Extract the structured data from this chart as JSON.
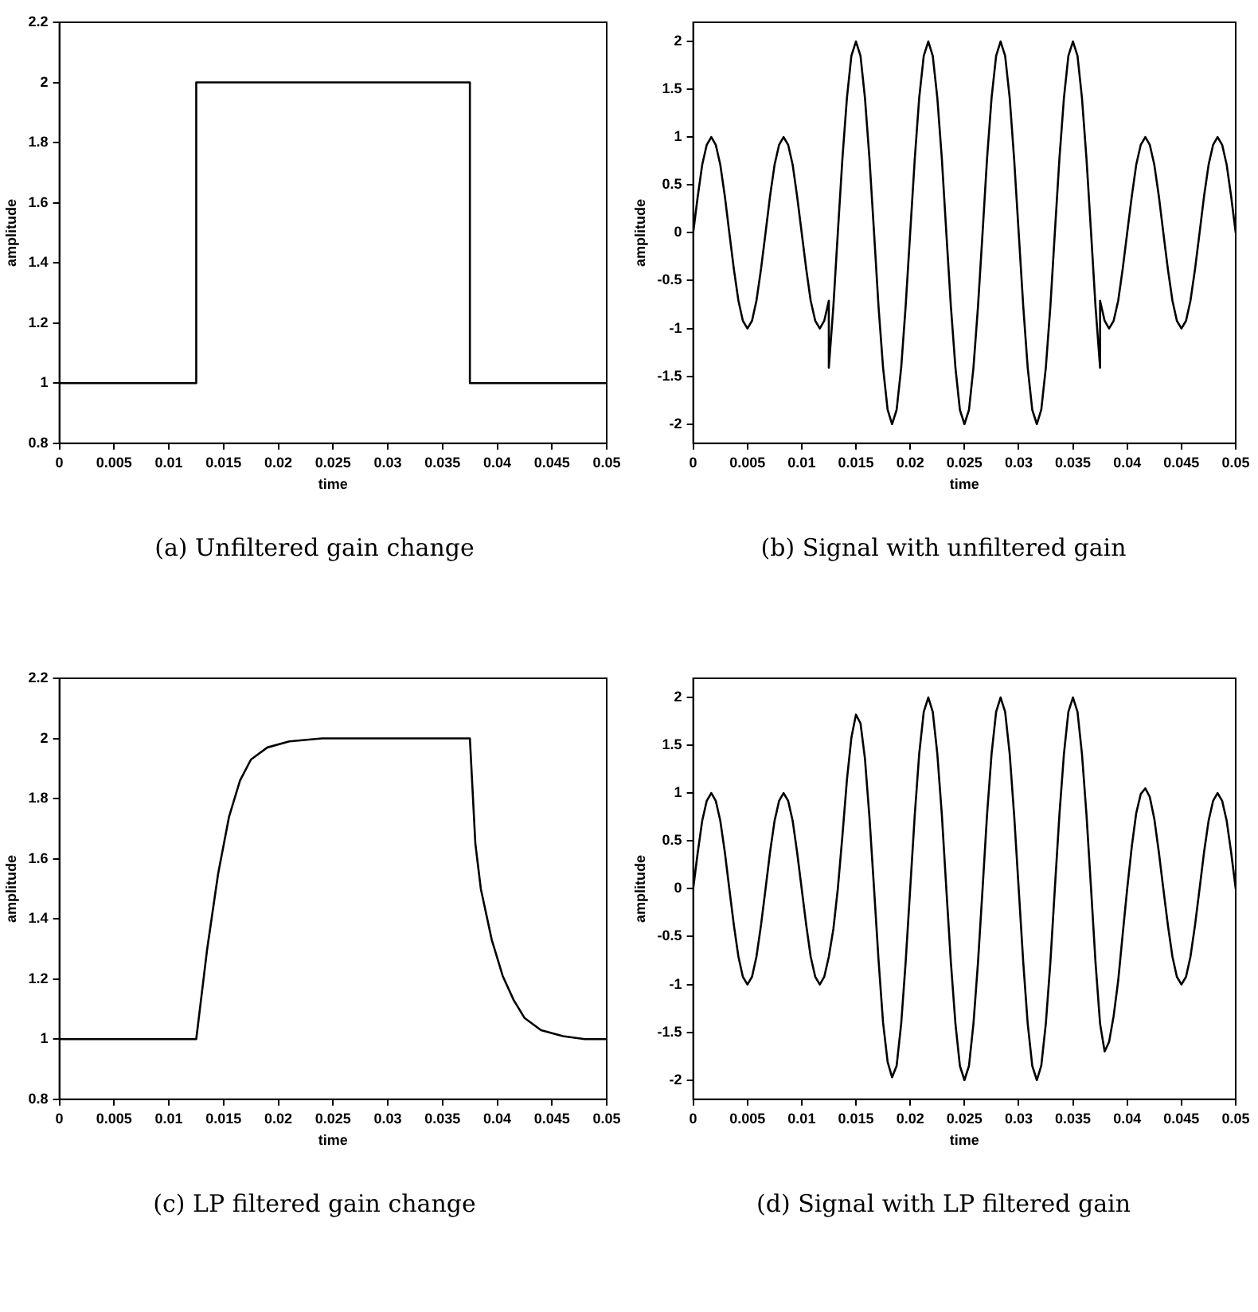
{
  "chart_data": [
    {
      "type": "line",
      "annotations": [
        "(a) Unfiltered gain change"
      ],
      "xlabel": "time",
      "ylabel": "amplitude",
      "xlim": [
        0,
        0.05
      ],
      "xticks": [
        0,
        0.005,
        0.01,
        0.015,
        0.02,
        0.025,
        0.03,
        0.035,
        0.04,
        0.045,
        0.05
      ],
      "ylim": [
        0.8,
        2.2
      ],
      "yticks": [
        0.8,
        1,
        1.2,
        1.4,
        1.6,
        1.8,
        2,
        2.2
      ],
      "grid": false,
      "legend": false,
      "marker": "none",
      "line_style": "solid",
      "series": [
        {
          "color": "#000000",
          "x": [
            0,
            0.0125,
            0.0125,
            0.0375,
            0.0375,
            0.05
          ],
          "values": [
            1,
            1,
            2,
            2,
            1,
            1
          ]
        }
      ]
    },
    {
      "type": "line",
      "annotations": [
        "(b) Signal with unfiltered gain"
      ],
      "xlabel": "time",
      "ylabel": "amplitude",
      "xlim": [
        0,
        0.05
      ],
      "xticks": [
        0,
        0.005,
        0.01,
        0.015,
        0.02,
        0.025,
        0.03,
        0.035,
        0.04,
        0.045,
        0.05
      ],
      "ylim": [
        -2.2,
        2.2
      ],
      "yticks": [
        -2,
        -1.5,
        -1,
        -0.5,
        0,
        0.5,
        1,
        1.5,
        2
      ],
      "grid": false,
      "legend": false,
      "marker": "none",
      "line_style": "solid",
      "series": [
        {
          "color": "#000000",
          "x": [
            0,
            0.00042,
            0.00083,
            0.00125,
            0.00167,
            0.00208,
            0.0025,
            0.00292,
            0.00333,
            0.00375,
            0.00417,
            0.00458,
            0.005,
            0.00542,
            0.00583,
            0.00625,
            0.00667,
            0.00708,
            0.0075,
            0.00792,
            0.00833,
            0.00875,
            0.00917,
            0.00958,
            0.01,
            0.01042,
            0.01083,
            0.01125,
            0.01167,
            0.01208,
            0.0125,
            0.0125,
            0.01292,
            0.01333,
            0.01375,
            0.01417,
            0.01458,
            0.015,
            0.01542,
            0.01583,
            0.01625,
            0.01667,
            0.01708,
            0.0175,
            0.01792,
            0.01833,
            0.01875,
            0.01917,
            0.01958,
            0.02,
            0.02042,
            0.02083,
            0.02125,
            0.02167,
            0.02208,
            0.0225,
            0.02292,
            0.02333,
            0.02375,
            0.02417,
            0.02458,
            0.025,
            0.02542,
            0.02583,
            0.02625,
            0.02667,
            0.02708,
            0.0275,
            0.02792,
            0.02833,
            0.02875,
            0.02917,
            0.02958,
            0.03,
            0.03042,
            0.03083,
            0.03125,
            0.03167,
            0.03208,
            0.0325,
            0.03292,
            0.03333,
            0.03375,
            0.03417,
            0.03458,
            0.035,
            0.03542,
            0.03583,
            0.03625,
            0.03667,
            0.03708,
            0.0375,
            0.0375,
            0.03792,
            0.03833,
            0.03875,
            0.03917,
            0.03958,
            0.04,
            0.04042,
            0.04083,
            0.04125,
            0.04167,
            0.04208,
            0.0425,
            0.04292,
            0.04333,
            0.04375,
            0.04417,
            0.04458,
            0.045,
            0.04542,
            0.04583,
            0.04625,
            0.04667,
            0.04708,
            0.0475,
            0.04792,
            0.04833,
            0.04875,
            0.04917,
            0.04958,
            0.05
          ],
          "values": [
            0,
            0.38,
            0.71,
            0.92,
            1,
            0.92,
            0.71,
            0.38,
            0,
            -0.38,
            -0.71,
            -0.92,
            -1,
            -0.92,
            -0.71,
            -0.38,
            0,
            0.38,
            0.71,
            0.92,
            1,
            0.92,
            0.71,
            0.38,
            0,
            -0.38,
            -0.71,
            -0.92,
            -1,
            -0.92,
            -0.71,
            -1.41,
            -0.77,
            0,
            0.77,
            1.41,
            1.85,
            2,
            1.85,
            1.41,
            0.77,
            0,
            -0.77,
            -1.41,
            -1.85,
            -2,
            -1.85,
            -1.41,
            -0.77,
            0,
            0.77,
            1.41,
            1.85,
            2,
            1.85,
            1.41,
            0.77,
            0,
            -0.77,
            -1.41,
            -1.85,
            -2,
            -1.85,
            -1.41,
            -0.77,
            0,
            0.77,
            1.41,
            1.85,
            2,
            1.85,
            1.41,
            0.77,
            0,
            -0.77,
            -1.41,
            -1.85,
            -2,
            -1.85,
            -1.41,
            -0.77,
            0,
            0.77,
            1.41,
            1.85,
            2,
            1.85,
            1.41,
            0.77,
            0,
            -0.77,
            -1.41,
            -0.71,
            -0.92,
            -1,
            -0.92,
            -0.71,
            -0.38,
            0,
            0.38,
            0.71,
            0.92,
            1,
            0.92,
            0.71,
            0.38,
            0,
            -0.38,
            -0.71,
            -0.92,
            -1,
            -0.92,
            -0.71,
            -0.38,
            0,
            0.38,
            0.71,
            0.92,
            1,
            0.92,
            0.71,
            0.38,
            0
          ]
        }
      ]
    },
    {
      "type": "line",
      "annotations": [
        "(c) LP filtered gain change"
      ],
      "xlabel": "time",
      "ylabel": "amplitude",
      "xlim": [
        0,
        0.05
      ],
      "xticks": [
        0,
        0.005,
        0.01,
        0.015,
        0.02,
        0.025,
        0.03,
        0.035,
        0.04,
        0.045,
        0.05
      ],
      "ylim": [
        0.8,
        2.2
      ],
      "yticks": [
        0.8,
        1,
        1.2,
        1.4,
        1.6,
        1.8,
        2,
        2.2
      ],
      "grid": false,
      "legend": false,
      "marker": "none",
      "line_style": "solid",
      "series": [
        {
          "color": "#000000",
          "x": [
            0,
            0.0125,
            0.0135,
            0.0145,
            0.0155,
            0.0165,
            0.0175,
            0.019,
            0.021,
            0.024,
            0.0375,
            0.038,
            0.0385,
            0.0395,
            0.0405,
            0.0415,
            0.0425,
            0.044,
            0.046,
            0.048,
            0.05
          ],
          "values": [
            1,
            1,
            1.3,
            1.55,
            1.74,
            1.86,
            1.93,
            1.97,
            1.99,
            2,
            2,
            1.65,
            1.5,
            1.33,
            1.21,
            1.13,
            1.07,
            1.03,
            1.01,
            1,
            1
          ]
        }
      ]
    },
    {
      "type": "line",
      "annotations": [
        "(d) Signal with LP filtered gain"
      ],
      "xlabel": "time",
      "ylabel": "amplitude",
      "xlim": [
        0,
        0.05
      ],
      "xticks": [
        0,
        0.005,
        0.01,
        0.015,
        0.02,
        0.025,
        0.03,
        0.035,
        0.04,
        0.045,
        0.05
      ],
      "ylim": [
        -2.2,
        2.2
      ],
      "yticks": [
        -2,
        -1.5,
        -1,
        -0.5,
        0,
        0.5,
        1,
        1.5,
        2
      ],
      "grid": false,
      "legend": false,
      "marker": "none",
      "line_style": "solid",
      "series": [
        {
          "color": "#000000",
          "x": [
            0,
            0.00042,
            0.00083,
            0.00125,
            0.00167,
            0.00208,
            0.0025,
            0.00292,
            0.00333,
            0.00375,
            0.00417,
            0.00458,
            0.005,
            0.00542,
            0.00583,
            0.00625,
            0.00667,
            0.00708,
            0.0075,
            0.00792,
            0.00833,
            0.00875,
            0.00917,
            0.00958,
            0.01,
            0.01042,
            0.01083,
            0.01125,
            0.01167,
            0.01208,
            0.0125,
            0.01292,
            0.01333,
            0.01375,
            0.01417,
            0.01458,
            0.015,
            0.01542,
            0.01583,
            0.01625,
            0.01667,
            0.01708,
            0.0175,
            0.01792,
            0.01833,
            0.01875,
            0.01917,
            0.01958,
            0.02,
            0.02042,
            0.02083,
            0.02125,
            0.02167,
            0.02208,
            0.0225,
            0.02292,
            0.02333,
            0.02375,
            0.02417,
            0.02458,
            0.025,
            0.02542,
            0.02583,
            0.02625,
            0.02667,
            0.02708,
            0.0275,
            0.02792,
            0.02833,
            0.02875,
            0.02917,
            0.02958,
            0.03,
            0.03042,
            0.03083,
            0.03125,
            0.03167,
            0.03208,
            0.0325,
            0.03292,
            0.03333,
            0.03375,
            0.03417,
            0.03458,
            0.035,
            0.03542,
            0.03583,
            0.03625,
            0.03667,
            0.03708,
            0.0375,
            0.03792,
            0.03833,
            0.03875,
            0.03917,
            0.03958,
            0.04,
            0.04042,
            0.04083,
            0.04125,
            0.04167,
            0.04208,
            0.0425,
            0.04292,
            0.04333,
            0.04375,
            0.04417,
            0.04458,
            0.045,
            0.04542,
            0.04583,
            0.04625,
            0.04667,
            0.04708,
            0.0475,
            0.04792,
            0.04833,
            0.04875,
            0.04917,
            0.04958,
            0.05
          ],
          "values": [
            0,
            0.38,
            0.71,
            0.92,
            1,
            0.92,
            0.71,
            0.38,
            0,
            -0.38,
            -0.71,
            -0.92,
            -1,
            -0.92,
            -0.71,
            -0.38,
            0,
            0.38,
            0.71,
            0.92,
            1,
            0.92,
            0.71,
            0.38,
            0,
            -0.38,
            -0.71,
            -0.92,
            -1,
            -0.92,
            -0.71,
            -0.42,
            0,
            0.55,
            1.14,
            1.58,
            1.82,
            1.73,
            1.36,
            0.74,
            0,
            -0.74,
            -1.4,
            -1.81,
            -1.97,
            -1.85,
            -1.41,
            -0.77,
            0,
            0.77,
            1.41,
            1.85,
            2,
            1.85,
            1.41,
            0.77,
            0,
            -0.77,
            -1.41,
            -1.85,
            -2,
            -1.85,
            -1.41,
            -0.77,
            0,
            0.77,
            1.41,
            1.85,
            2,
            1.85,
            1.41,
            0.77,
            0,
            -0.77,
            -1.41,
            -1.85,
            -2,
            -1.85,
            -1.41,
            -0.77,
            0,
            0.77,
            1.41,
            1.85,
            2,
            1.85,
            1.41,
            0.77,
            0,
            -0.77,
            -1.41,
            -1.7,
            -1.6,
            -1.33,
            -0.96,
            -0.48,
            0,
            0.44,
            0.79,
            0.99,
            1.05,
            0.96,
            0.73,
            0.38,
            0,
            -0.38,
            -0.71,
            -0.92,
            -1,
            -0.92,
            -0.71,
            -0.38,
            0,
            0.38,
            0.71,
            0.92,
            1,
            0.92,
            0.71,
            0.38,
            0
          ]
        }
      ]
    }
  ]
}
